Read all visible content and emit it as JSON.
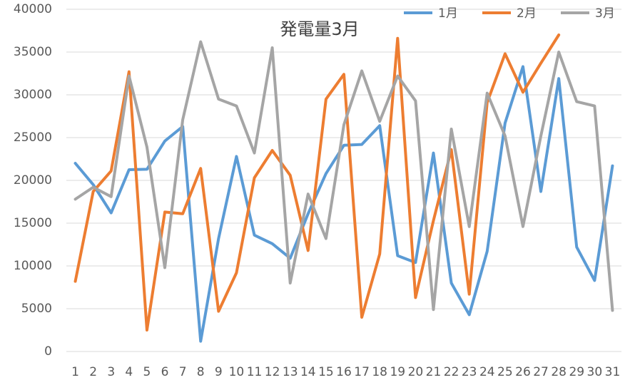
{
  "chart_data": {
    "type": "line",
    "title": "発電量3月",
    "categories": [
      "1",
      "2",
      "3",
      "4",
      "5",
      "6",
      "7",
      "8",
      "9",
      "10",
      "11",
      "12",
      "13",
      "14",
      "15",
      "16",
      "17",
      "18",
      "19",
      "20",
      "21",
      "22",
      "23",
      "24",
      "25",
      "26",
      "27",
      "28",
      "29",
      "30",
      "31"
    ],
    "series": [
      {
        "name": "1月",
        "color": "#5b9bd5",
        "values": [
          22000,
          19500,
          16200,
          21250,
          21300,
          24600,
          26300,
          1200,
          13200,
          22800,
          13600,
          12600,
          10900,
          16100,
          20800,
          24100,
          24200,
          26400,
          11200,
          10400,
          23200,
          8000,
          4300,
          11700,
          26700,
          33300,
          18700,
          31900,
          12200,
          8300,
          21700
        ]
      },
      {
        "name": "2月",
        "color": "#ed7d31",
        "values": [
          8200,
          18700,
          21100,
          32700,
          2500,
          16300,
          16100,
          21400,
          4700,
          9200,
          20300,
          23500,
          20600,
          11800,
          29500,
          32400,
          4000,
          11400,
          36600,
          6300,
          15300,
          23600,
          6700,
          29100,
          34800,
          30300,
          33700,
          37000,
          null,
          null,
          null
        ]
      },
      {
        "name": "3月",
        "color": "#a5a5a5",
        "values": [
          17800,
          19200,
          18100,
          32200,
          23900,
          9800,
          27100,
          36200,
          29500,
          28700,
          23200,
          35500,
          8000,
          18400,
          13200,
          26500,
          32800,
          26900,
          32200,
          29300,
          4900,
          26000,
          14600,
          30200,
          25200,
          14600,
          25200,
          35000,
          29200,
          28700,
          4800
        ]
      }
    ],
    "ylim": [
      0,
      40000
    ],
    "yticks": [
      0,
      5000,
      10000,
      15000,
      20000,
      25000,
      30000,
      35000,
      40000
    ],
    "grid": true,
    "legend": "top-right"
  }
}
